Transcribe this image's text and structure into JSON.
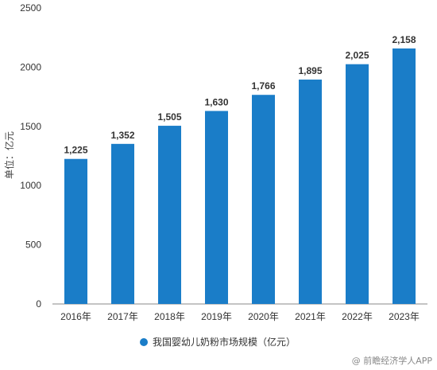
{
  "chart_data": {
    "type": "bar",
    "categories": [
      "2016年",
      "2017年",
      "2018年",
      "2019年",
      "2020年",
      "2021年",
      "2022年",
      "2023年"
    ],
    "values": [
      1225,
      1352,
      1505,
      1630,
      1766,
      1895,
      2025,
      2158
    ],
    "data_labels": [
      "1,225",
      "1,352",
      "1,505",
      "1,630",
      "1,766",
      "1,895",
      "2,025",
      "2,158"
    ],
    "series": [
      {
        "name": "我国婴幼儿奶粉市场规模（亿元）",
        "values": [
          1225,
          1352,
          1505,
          1630,
          1766,
          1895,
          2025,
          2158
        ]
      }
    ],
    "ylabel": "单位：亿元",
    "xlabel": "",
    "ylim": [
      0,
      2500
    ],
    "yticks": [
      "0",
      "500",
      "1000",
      "1500",
      "2000",
      "2500"
    ],
    "grid": false,
    "legend_position": "bottom",
    "bar_color": "#1A7DC8"
  },
  "watermark": "@ 前瞻经济学人APP"
}
